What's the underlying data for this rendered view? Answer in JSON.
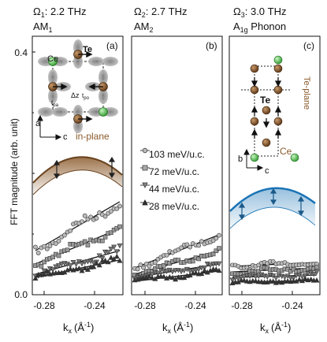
{
  "figure": {
    "ylabel": "FFT magnitude (arb. unit)",
    "yticks": [
      "0.0",
      "0.4"
    ],
    "xlabel": "k",
    "xlabel_sub": "x",
    "xlabel_unit": "(Å",
    "xlabel_unit_sup": "-1",
    "xlabel_close": ")",
    "xticks": [
      "-0.28",
      "-0.24"
    ],
    "accent_brown": "#8a5a2b",
    "accent_blue": "#1a73b5"
  },
  "panels": [
    {
      "omega": "Ω",
      "omega_sub": "1",
      "freq": ": 2.2 THz",
      "mode": "AM",
      "mode_sub": "1",
      "tag": "(a)",
      "inset": {
        "ce": "Ce",
        "te": "Te",
        "dz": "Δz",
        "tpa": "t",
        "tpa_sub": "pa",
        "tpo": "t",
        "tpo_sub": "po",
        "axis_a": "a",
        "axis_c": "c",
        "plane": "in-plane"
      }
    },
    {
      "omega": "Ω",
      "omega_sub": "2",
      "freq": ": 2.7 THz",
      "mode": "AM",
      "mode_sub": "2",
      "tag": "(b)",
      "legend": [
        "103 meV/u.c.",
        "72 meV/u.c.",
        "44 meV/u.c.",
        "28 meV/u.c."
      ]
    },
    {
      "omega": "Ω",
      "omega_sub": "3",
      "freq": ": 3.0 THz",
      "mode": "A",
      "mode_sub": "1g",
      "mode_rest": " Phonon",
      "tag": "(c)",
      "inset": {
        "te": "Te",
        "ce": "Ce",
        "plane": "Te-plane",
        "axis_b": "b",
        "axis_c": "c"
      }
    }
  ]
}
